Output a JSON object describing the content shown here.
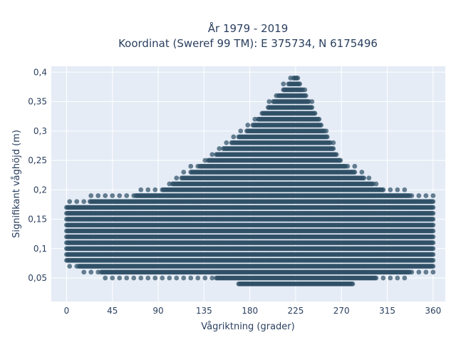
{
  "chart_data": {
    "type": "scatter",
    "title_line1": "År 1979 - 2019",
    "title_line2": "Koordinat (Sweref 99 TM): E 375734, N 6175496",
    "xlabel": "Vågriktning (grader)",
    "ylabel": "Signifikant våghöjd (m)",
    "xlim": [
      -15,
      372
    ],
    "ylim": [
      0.01,
      0.41
    ],
    "x_ticks": [
      0,
      45,
      90,
      135,
      180,
      225,
      270,
      315,
      360
    ],
    "x_tick_labels": [
      "0",
      "45",
      "90",
      "135",
      "180",
      "225",
      "270",
      "315",
      "360"
    ],
    "y_ticks": [
      0.05,
      0.1,
      0.15,
      0.2,
      0.25,
      0.3,
      0.35,
      0.4
    ],
    "y_tick_labels": [
      "0,05",
      "0,1",
      "0,15",
      "0,2",
      "0,25",
      "0,3",
      "0,35",
      "0,4"
    ],
    "grid": true,
    "marker_color": "#2f5166",
    "plot_bg": "#e5ecf6",
    "envelope": [
      {
        "x": 0,
        "ymin": 0.08,
        "ymax": 0.17
      },
      {
        "x": 45,
        "ymin": 0.06,
        "ymax": 0.18
      },
      {
        "x": 90,
        "ymin": 0.06,
        "ymax": 0.19
      },
      {
        "x": 135,
        "ymin": 0.06,
        "ymax": 0.24
      },
      {
        "x": 180,
        "ymin": 0.04,
        "ymax": 0.3
      },
      {
        "x": 225,
        "ymin": 0.04,
        "ymax": 0.39
      },
      {
        "x": 270,
        "ymin": 0.04,
        "ymax": 0.24
      },
      {
        "x": 315,
        "ymin": 0.06,
        "ymax": 0.19
      },
      {
        "x": 360,
        "ymin": 0.07,
        "ymax": 0.18
      }
    ]
  }
}
